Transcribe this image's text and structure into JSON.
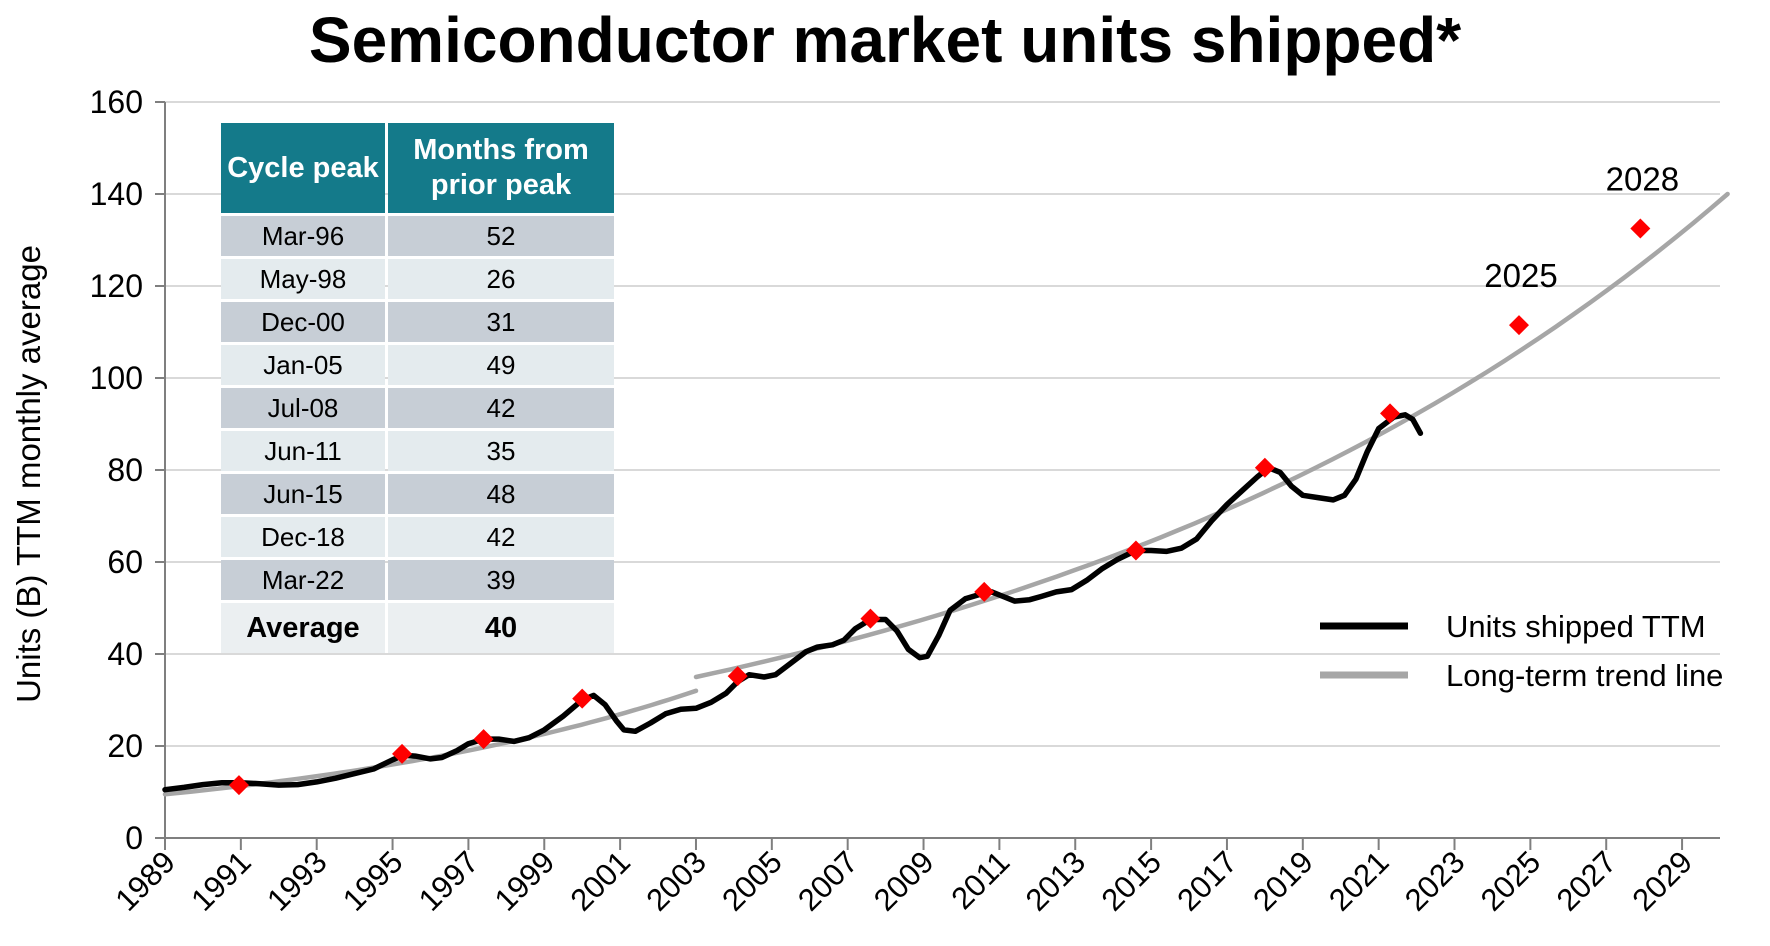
{
  "chart_data": {
    "type": "line",
    "title": "Semiconductor market units shipped*",
    "ylabel": "Units (B) TTM monthly average",
    "xlabel": "",
    "ylim": [
      0,
      160
    ],
    "xlim": [
      1989,
      2030
    ],
    "y_ticks": [
      "0",
      "20",
      "40",
      "60",
      "80",
      "100",
      "120",
      "140",
      "160"
    ],
    "x_ticks": [
      "1989",
      "1991",
      "1993",
      "1995",
      "1997",
      "1999",
      "2001",
      "2003",
      "2005",
      "2007",
      "2009",
      "2011",
      "2013",
      "2015",
      "2017",
      "2019",
      "2021",
      "2023",
      "2025",
      "2027",
      "2029"
    ],
    "grid": "horizontal",
    "legend_position": "right",
    "series": [
      {
        "name": "Units shipped TTM",
        "color": "#000000",
        "points": [
          [
            1989.0,
            10.5
          ],
          [
            1989.5,
            11.0
          ],
          [
            1990.0,
            11.6
          ],
          [
            1990.5,
            12.0
          ],
          [
            1991.0,
            12.0
          ],
          [
            1991.5,
            11.8
          ],
          [
            1992.0,
            11.5
          ],
          [
            1992.5,
            11.6
          ],
          [
            1993.0,
            12.2
          ],
          [
            1993.5,
            13.0
          ],
          [
            1994.0,
            14.0
          ],
          [
            1994.5,
            15.0
          ],
          [
            1995.0,
            17.0
          ],
          [
            1995.3,
            18.0
          ],
          [
            1995.6,
            17.8
          ],
          [
            1996.0,
            17.2
          ],
          [
            1996.3,
            17.5
          ],
          [
            1996.7,
            19.0
          ],
          [
            1997.0,
            20.5
          ],
          [
            1997.4,
            21.5
          ],
          [
            1997.8,
            21.5
          ],
          [
            1998.2,
            21.0
          ],
          [
            1998.6,
            21.8
          ],
          [
            1999.0,
            23.5
          ],
          [
            1999.5,
            26.5
          ],
          [
            2000.0,
            30.0
          ],
          [
            2000.3,
            31.0
          ],
          [
            2000.6,
            29.0
          ],
          [
            2000.9,
            25.5
          ],
          [
            2001.1,
            23.5
          ],
          [
            2001.4,
            23.2
          ],
          [
            2001.8,
            25.0
          ],
          [
            2002.2,
            27.0
          ],
          [
            2002.6,
            28.0
          ],
          [
            2003.0,
            28.2
          ],
          [
            2003.4,
            29.5
          ],
          [
            2003.8,
            31.5
          ],
          [
            2004.1,
            34.0
          ],
          [
            2004.4,
            35.5
          ],
          [
            2004.8,
            35.0
          ],
          [
            2005.1,
            35.5
          ],
          [
            2005.5,
            38.0
          ],
          [
            2005.9,
            40.5
          ],
          [
            2006.2,
            41.5
          ],
          [
            2006.6,
            42.0
          ],
          [
            2006.9,
            43.0
          ],
          [
            2007.2,
            45.5
          ],
          [
            2007.6,
            47.5
          ],
          [
            2008.0,
            47.5
          ],
          [
            2008.3,
            45.0
          ],
          [
            2008.6,
            41.0
          ],
          [
            2008.9,
            39.2
          ],
          [
            2009.1,
            39.5
          ],
          [
            2009.4,
            44.0
          ],
          [
            2009.7,
            49.5
          ],
          [
            2010.1,
            52.0
          ],
          [
            2010.5,
            53.0
          ],
          [
            2010.8,
            53.5
          ],
          [
            2011.1,
            52.5
          ],
          [
            2011.4,
            51.5
          ],
          [
            2011.8,
            51.8
          ],
          [
            2012.1,
            52.5
          ],
          [
            2012.5,
            53.5
          ],
          [
            2012.9,
            54.0
          ],
          [
            2013.3,
            56.0
          ],
          [
            2013.7,
            58.5
          ],
          [
            2014.1,
            60.5
          ],
          [
            2014.6,
            62.5
          ],
          [
            2015.0,
            62.5
          ],
          [
            2015.4,
            62.3
          ],
          [
            2015.8,
            63.0
          ],
          [
            2016.2,
            65.0
          ],
          [
            2016.6,
            69.0
          ],
          [
            2017.0,
            72.5
          ],
          [
            2017.4,
            75.5
          ],
          [
            2017.8,
            78.5
          ],
          [
            2018.1,
            80.5
          ],
          [
            2018.4,
            79.5
          ],
          [
            2018.7,
            76.5
          ],
          [
            2019.0,
            74.5
          ],
          [
            2019.4,
            74.0
          ],
          [
            2019.8,
            73.5
          ],
          [
            2020.1,
            74.5
          ],
          [
            2020.4,
            78.0
          ],
          [
            2020.7,
            84.0
          ],
          [
            2021.0,
            89.0
          ],
          [
            2021.4,
            91.5
          ],
          [
            2021.7,
            92.0
          ],
          [
            2021.9,
            91.0
          ],
          [
            2022.1,
            88.0
          ]
        ]
      },
      {
        "name": "Long-term trend line",
        "color": "#a6a6a6",
        "segments": [
          {
            "from": 1989.0,
            "to": 2003.0,
            "y_start": 9.5,
            "y_end": 32.0
          },
          {
            "from": 2003.0,
            "to": 2030.2,
            "y_start": 35.0,
            "y_end": 140.0
          }
        ]
      }
    ],
    "peak_markers": [
      [
        1990.95,
        11.5
      ],
      [
        1995.25,
        18.3
      ],
      [
        1997.4,
        21.5
      ],
      [
        2000.0,
        30.3
      ],
      [
        2004.1,
        35.2
      ],
      [
        2007.6,
        47.7
      ],
      [
        2010.6,
        53.5
      ],
      [
        2014.6,
        62.5
      ],
      [
        2018.0,
        80.5
      ],
      [
        2021.3,
        92.3
      ],
      [
        2024.7,
        111.5
      ],
      [
        2027.9,
        132.5
      ]
    ],
    "marker_color": "#ff0000",
    "annotations": [
      {
        "text": "2025",
        "x": 2024.7,
        "y": 111.5
      },
      {
        "text": "2028",
        "x": 2027.9,
        "y": 132.5
      }
    ]
  },
  "table": {
    "headers": [
      "Cycle peak",
      "Months from prior peak"
    ],
    "rows": [
      {
        "peak": "Mar-96",
        "months": "52"
      },
      {
        "peak": "May-98",
        "months": "26"
      },
      {
        "peak": "Dec-00",
        "months": "31"
      },
      {
        "peak": "Jan-05",
        "months": "49"
      },
      {
        "peak": "Jul-08",
        "months": "42"
      },
      {
        "peak": "Jun-11",
        "months": "35"
      },
      {
        "peak": "Jun-15",
        "months": "48"
      },
      {
        "peak": "Dec-18",
        "months": "42"
      },
      {
        "peak": "Mar-22",
        "months": "39"
      }
    ],
    "average_label": "Average",
    "average_value": "40"
  },
  "colors": {
    "header": "#147a8a",
    "row_dark": "#c7ced6",
    "row_light": "#e4ebee",
    "grid": "#d9d9d9"
  }
}
